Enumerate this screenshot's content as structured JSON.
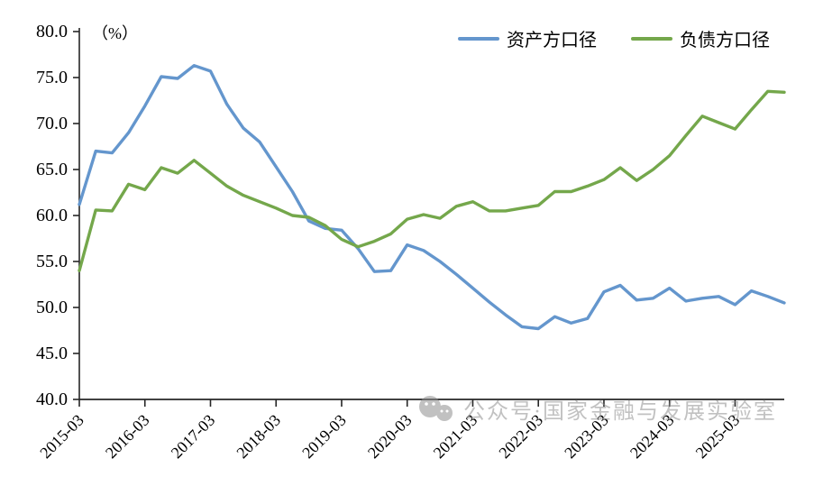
{
  "chart": {
    "percent_label": "（%）",
    "watermark_text": "公众号·国家金融与发展实验室",
    "colors": {
      "asset": "#6496cd",
      "liability": "#74a74b",
      "axis": "#262626",
      "watermark": "#8f8f8f"
    },
    "legend": [
      {
        "label": "资产方口径",
        "color_key": "asset"
      },
      {
        "label": "负债方口径",
        "color_key": "liability"
      }
    ]
  },
  "chart_data": {
    "type": "line",
    "title": "",
    "xlabel": "",
    "ylabel": "（%）",
    "ylim": [
      40.0,
      80.0
    ],
    "ytick_step": 5.0,
    "grid": false,
    "legend_position": "top-right",
    "x": [
      "2015-03",
      "2015-06",
      "2015-09",
      "2015-12",
      "2016-03",
      "2016-06",
      "2016-09",
      "2016-12",
      "2017-03",
      "2017-06",
      "2017-09",
      "2017-12",
      "2018-03",
      "2018-06",
      "2018-09",
      "2018-12",
      "2019-03",
      "2019-06",
      "2019-09",
      "2019-12",
      "2020-03",
      "2020-06",
      "2020-09",
      "2020-12",
      "2021-03",
      "2021-06",
      "2021-09",
      "2021-12",
      "2022-03",
      "2022-06",
      "2022-09",
      "2022-12",
      "2023-03",
      "2023-06",
      "2023-09",
      "2023-12",
      "2024-03",
      "2024-06",
      "2024-09",
      "2024-12",
      "2025-03",
      "2025-06",
      "2025-09",
      "2025-12"
    ],
    "x_tick_labels": [
      "2015-03",
      "2016-03",
      "2017-03",
      "2018-03",
      "2019-03",
      "2020-03",
      "2021-03",
      "2022-03",
      "2023-03",
      "2024-03",
      "2025-03"
    ],
    "x_tick_every": 4,
    "series": [
      {
        "name": "资产方口径",
        "color": "#6496cd",
        "values": [
          61.2,
          67.0,
          66.8,
          69.0,
          71.9,
          75.1,
          74.9,
          76.3,
          75.7,
          72.1,
          69.5,
          68.0,
          65.3,
          62.6,
          59.4,
          58.6,
          58.4,
          56.4,
          53.9,
          54.0,
          56.8,
          56.2,
          55.0,
          53.6,
          52.1,
          50.6,
          49.2,
          47.9,
          47.7,
          49.0,
          48.3,
          48.8,
          51.7,
          52.4,
          50.8,
          51.0,
          52.1,
          50.7,
          51.0,
          51.2,
          50.3,
          51.8,
          51.2,
          50.5
        ]
      },
      {
        "name": "负债方口径",
        "color": "#74a74b",
        "values": [
          54.0,
          60.6,
          60.5,
          63.4,
          62.8,
          65.2,
          64.6,
          66.0,
          64.6,
          63.2,
          62.2,
          61.5,
          60.8,
          60.0,
          59.8,
          58.9,
          57.4,
          56.6,
          57.2,
          58.0,
          59.6,
          60.1,
          59.7,
          61.0,
          61.5,
          60.5,
          60.5,
          60.8,
          61.1,
          62.6,
          62.6,
          63.2,
          63.9,
          65.2,
          63.8,
          65.0,
          66.5,
          68.7,
          70.8,
          70.1,
          69.4,
          71.5,
          73.5,
          73.4
        ]
      }
    ]
  }
}
